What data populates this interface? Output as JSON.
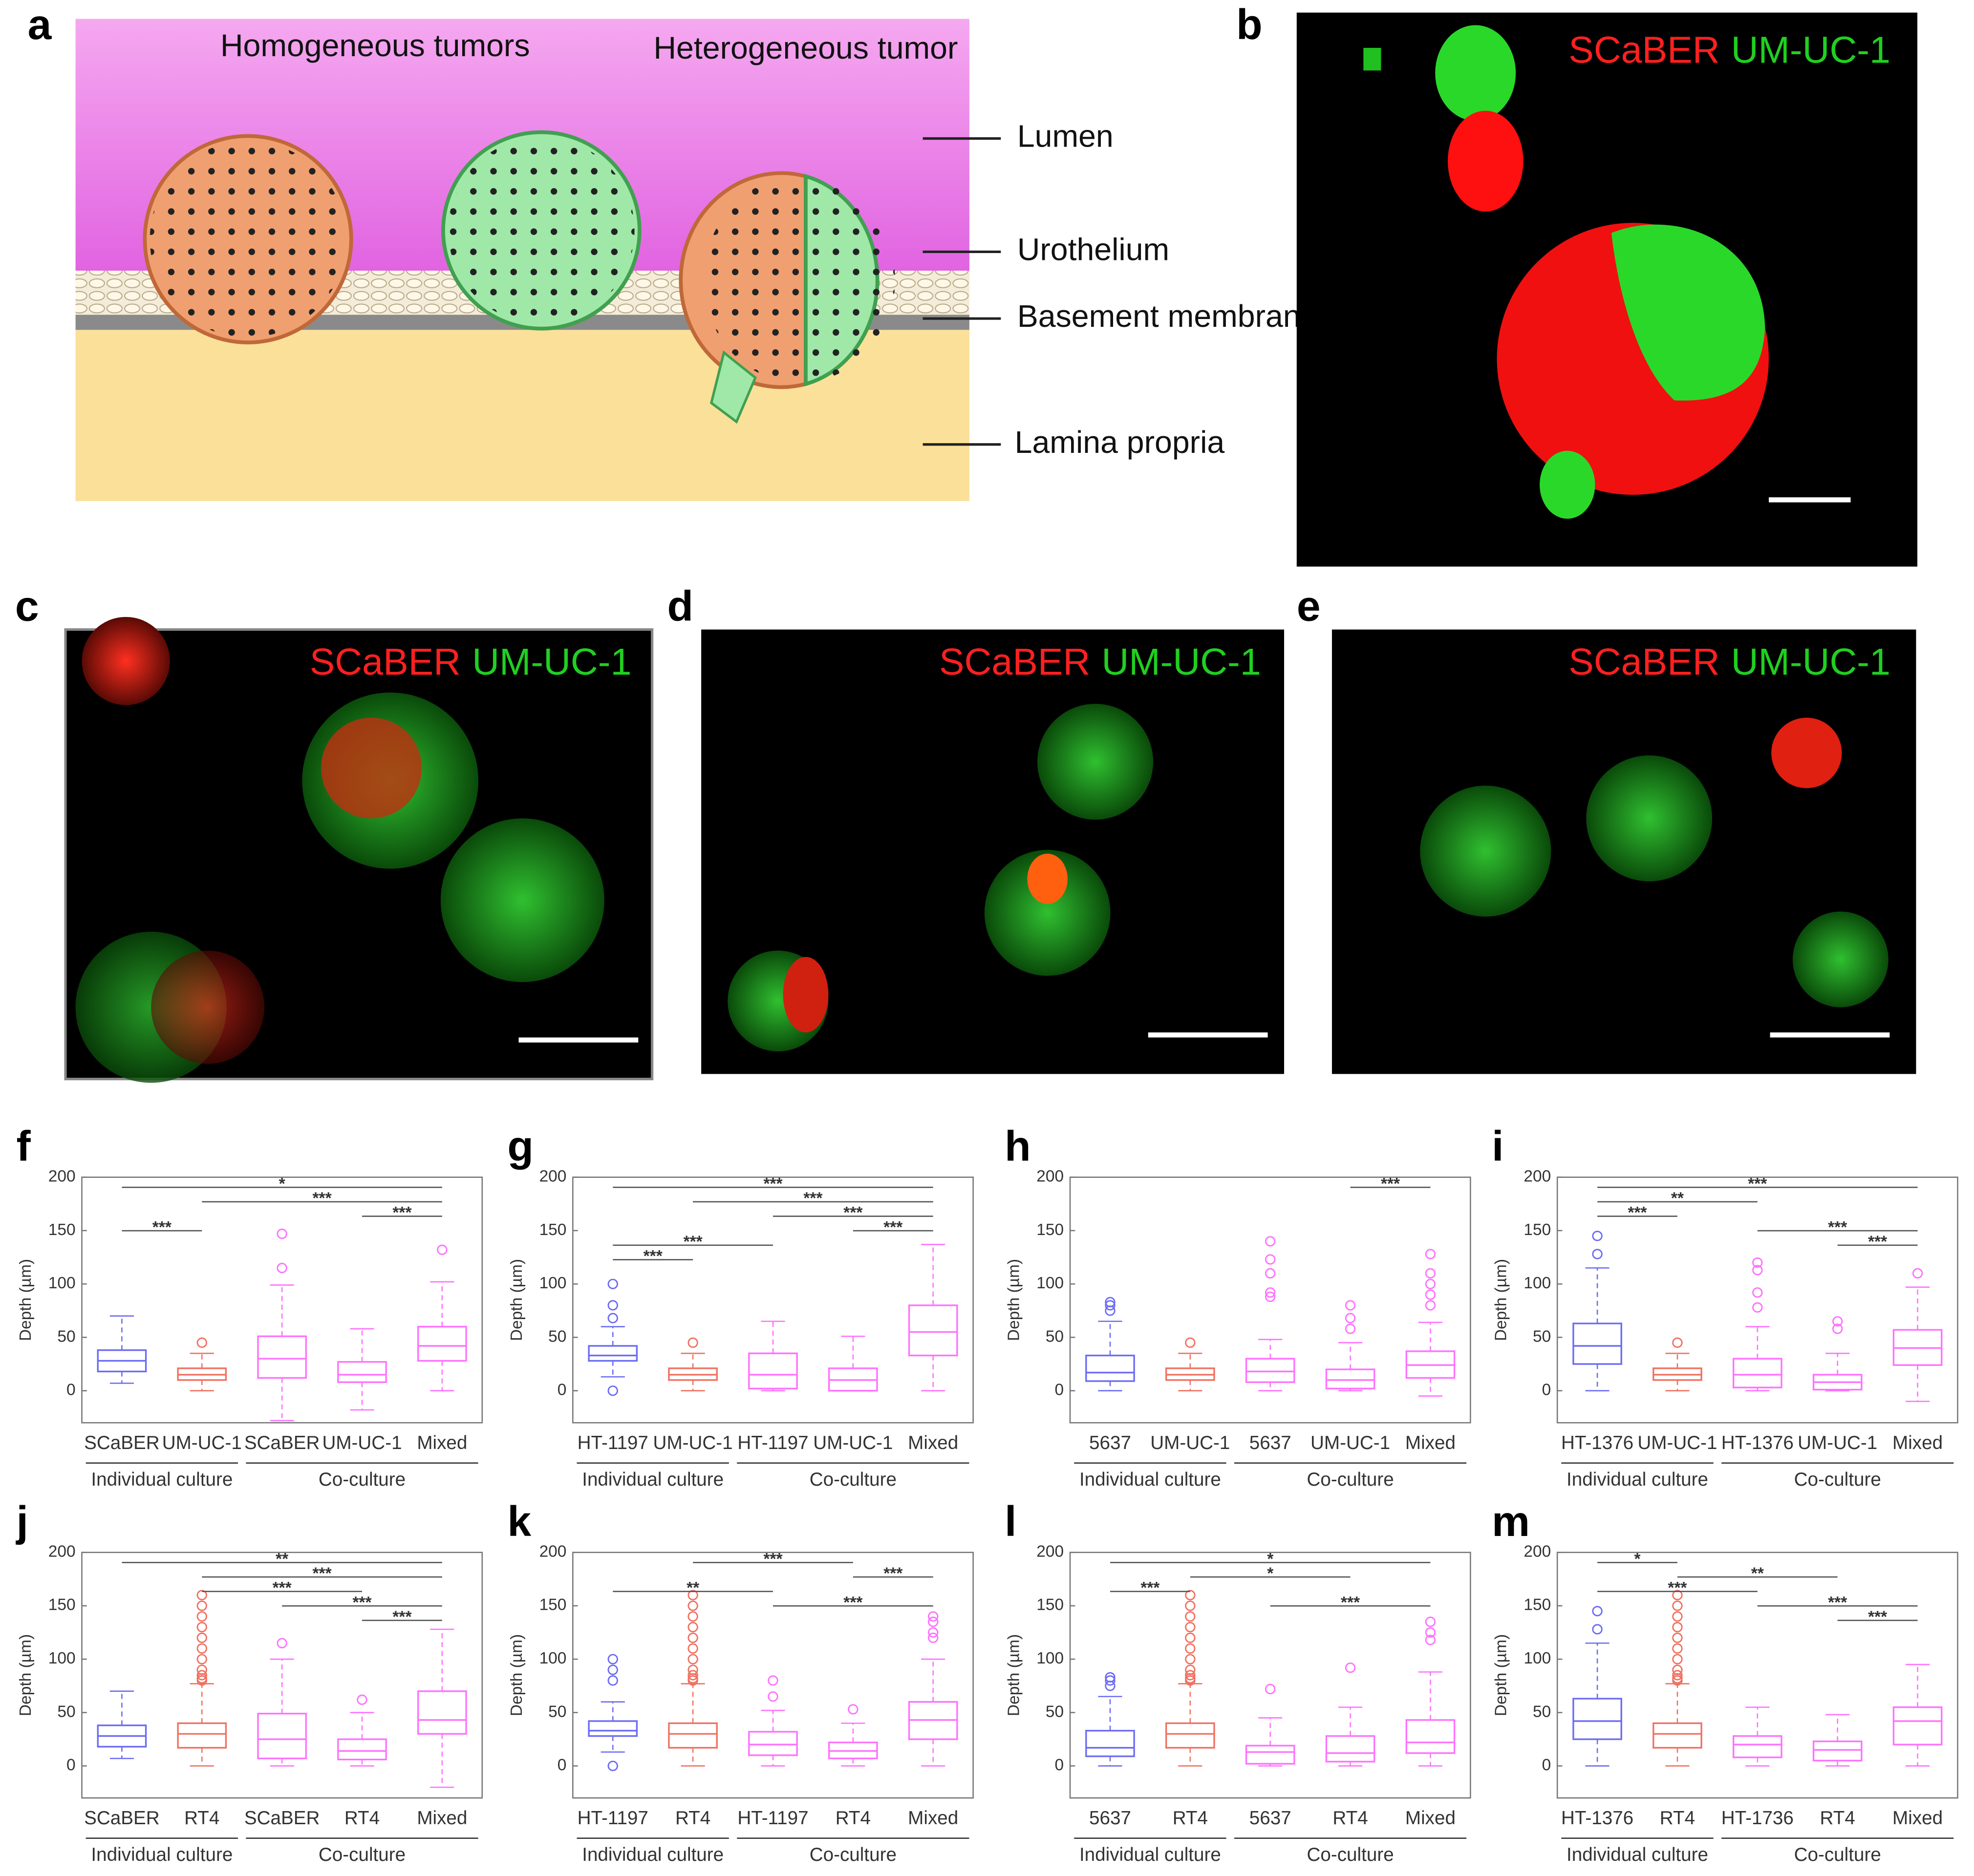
{
  "diagram": {
    "label": "a",
    "titles": [
      "Homogeneous tumors",
      "Heterogeneous tumor"
    ],
    "layers": [
      "Lumen",
      "Urothelium",
      "Basement membrane",
      "Lamina propria"
    ]
  },
  "images": [
    {
      "label": "b",
      "legend": [
        "SCaBER",
        "UM-UC-1"
      ]
    },
    {
      "label": "c",
      "legend": [
        "SCaBER",
        "UM-UC-1"
      ]
    },
    {
      "label": "d",
      "legend": [
        "SCaBER",
        "UM-UC-1"
      ]
    },
    {
      "label": "e",
      "legend": [
        "SCaBER",
        "UM-UC-1"
      ]
    }
  ],
  "chart_data": [
    {
      "type": "box",
      "label": "f",
      "ylabel": "Depth (µm)",
      "ylim": [
        -30,
        200
      ],
      "yticks": [
        0,
        50,
        100,
        150,
        200
      ],
      "categories": [
        "SCaBER",
        "UM-UC-1",
        "SCaBER",
        "UM-UC-1",
        "Mixed"
      ],
      "colors": [
        "#6b6bf5",
        "#f07060",
        "#ff70ff",
        "#ff70ff",
        "#ff70ff"
      ],
      "groups": [
        {
          "label": "Individual culture",
          "from": 0,
          "to": 1
        },
        {
          "label": "Co-culture",
          "from": 2,
          "to": 4
        }
      ],
      "boxes": [
        {
          "whislo": 7,
          "q1": 18,
          "med": 28,
          "q3": 38,
          "whishi": 70,
          "fliers": []
        },
        {
          "whislo": 0,
          "q1": 10,
          "med": 15,
          "q3": 21,
          "whishi": 35,
          "fliers": [
            45
          ]
        },
        {
          "whislo": -28,
          "q1": 12,
          "med": 30,
          "q3": 51,
          "whishi": 99,
          "fliers": [
            115,
            147
          ]
        },
        {
          "whislo": -18,
          "q1": 8,
          "med": 15,
          "q3": 27,
          "whishi": 58,
          "fliers": []
        },
        {
          "whislo": 0,
          "q1": 28,
          "med": 42,
          "q3": 60,
          "whishi": 102,
          "fliers": [
            132
          ]
        }
      ],
      "brackets": [
        {
          "from": 0,
          "to": 4,
          "label": "*"
        },
        {
          "from": 1,
          "to": 4,
          "label": "***"
        },
        {
          "from": 3,
          "to": 4,
          "label": "***"
        },
        {
          "from": 0,
          "to": 1,
          "label": "***"
        }
      ]
    },
    {
      "type": "box",
      "label": "g",
      "ylabel": "Depth (µm)",
      "ylim": [
        -30,
        200
      ],
      "yticks": [
        0,
        50,
        100,
        150,
        200
      ],
      "categories": [
        "HT-1197",
        "UM-UC-1",
        "HT-1197",
        "UM-UC-1",
        "Mixed"
      ],
      "colors": [
        "#6b6bf5",
        "#f07060",
        "#ff70ff",
        "#ff70ff",
        "#ff70ff"
      ],
      "groups": [
        {
          "label": "Individual culture",
          "from": 0,
          "to": 1
        },
        {
          "label": "Co-culture",
          "from": 2,
          "to": 4
        }
      ],
      "boxes": [
        {
          "whislo": 13,
          "q1": 28,
          "med": 33,
          "q3": 42,
          "whishi": 60,
          "fliers": [
            0,
            68,
            80,
            100
          ]
        },
        {
          "whislo": 0,
          "q1": 10,
          "med": 15,
          "q3": 21,
          "whishi": 35,
          "fliers": [
            45
          ]
        },
        {
          "whislo": 0,
          "q1": 2,
          "med": 15,
          "q3": 35,
          "whishi": 65,
          "fliers": []
        },
        {
          "whislo": 0,
          "q1": 0,
          "med": 10,
          "q3": 21,
          "whishi": 51,
          "fliers": []
        },
        {
          "whislo": 0,
          "q1": 33,
          "med": 55,
          "q3": 80,
          "whishi": 137,
          "fliers": []
        }
      ],
      "brackets": [
        {
          "from": 0,
          "to": 4,
          "label": "***"
        },
        {
          "from": 1,
          "to": 4,
          "label": "***"
        },
        {
          "from": 2,
          "to": 4,
          "label": "***"
        },
        {
          "from": 3,
          "to": 4,
          "label": "***"
        },
        {
          "from": 0,
          "to": 2,
          "label": "***"
        },
        {
          "from": 0,
          "to": 1,
          "label": "***"
        }
      ]
    },
    {
      "type": "box",
      "label": "h",
      "ylabel": "Depth (µm)",
      "ylim": [
        -30,
        200
      ],
      "yticks": [
        0,
        50,
        100,
        150,
        200
      ],
      "categories": [
        "5637",
        "UM-UC-1",
        "5637",
        "UM-UC-1",
        "Mixed"
      ],
      "colors": [
        "#6b6bf5",
        "#f07060",
        "#ff70ff",
        "#ff70ff",
        "#ff70ff"
      ],
      "groups": [
        {
          "label": "Individual culture",
          "from": 0,
          "to": 1
        },
        {
          "label": "Co-culture",
          "from": 2,
          "to": 4
        }
      ],
      "boxes": [
        {
          "whislo": 0,
          "q1": 9,
          "med": 17,
          "q3": 33,
          "whishi": 65,
          "fliers": [
            75,
            80,
            83
          ]
        },
        {
          "whislo": 0,
          "q1": 10,
          "med": 15,
          "q3": 21,
          "whishi": 35,
          "fliers": [
            45
          ]
        },
        {
          "whislo": 0,
          "q1": 8,
          "med": 18,
          "q3": 30,
          "whishi": 48,
          "fliers": [
            88,
            92,
            110,
            123,
            140
          ]
        },
        {
          "whislo": 0,
          "q1": 2,
          "med": 10,
          "q3": 20,
          "whishi": 45,
          "fliers": [
            58,
            68,
            80
          ]
        },
        {
          "whislo": -5,
          "q1": 12,
          "med": 24,
          "q3": 37,
          "whishi": 64,
          "fliers": [
            80,
            90,
            100,
            110,
            128
          ]
        }
      ],
      "brackets": [
        {
          "from": 3,
          "to": 4,
          "label": "***"
        }
      ]
    },
    {
      "type": "box",
      "label": "i",
      "ylabel": "Depth (µm)",
      "ylim": [
        -30,
        200
      ],
      "yticks": [
        0,
        50,
        100,
        150,
        200
      ],
      "categories": [
        "HT-1376",
        "UM-UC-1",
        "HT-1376",
        "UM-UC-1",
        "Mixed"
      ],
      "colors": [
        "#6b6bf5",
        "#f07060",
        "#ff70ff",
        "#ff70ff",
        "#ff70ff"
      ],
      "groups": [
        {
          "label": "Individual culture",
          "from": 0,
          "to": 1
        },
        {
          "label": "Co-culture",
          "from": 2,
          "to": 4
        }
      ],
      "boxes": [
        {
          "whislo": 0,
          "q1": 25,
          "med": 42,
          "q3": 63,
          "whishi": 115,
          "fliers": [
            128,
            145
          ]
        },
        {
          "whislo": 0,
          "q1": 10,
          "med": 15,
          "q3": 21,
          "whishi": 35,
          "fliers": [
            45
          ]
        },
        {
          "whislo": 0,
          "q1": 3,
          "med": 15,
          "q3": 30,
          "whishi": 60,
          "fliers": [
            78,
            92,
            113,
            120
          ]
        },
        {
          "whislo": 0,
          "q1": 1,
          "med": 8,
          "q3": 15,
          "whishi": 35,
          "fliers": [
            58,
            65
          ]
        },
        {
          "whislo": -10,
          "q1": 24,
          "med": 40,
          "q3": 57,
          "whishi": 97,
          "fliers": [
            110
          ]
        }
      ],
      "brackets": [
        {
          "from": 0,
          "to": 4,
          "label": "***"
        },
        {
          "from": 0,
          "to": 2,
          "label": "**"
        },
        {
          "from": 0,
          "to": 1,
          "label": "***"
        },
        {
          "from": 2,
          "to": 4,
          "label": "***"
        },
        {
          "from": 3,
          "to": 4,
          "label": "***"
        }
      ]
    },
    {
      "type": "box",
      "label": "j",
      "ylabel": "Depth (µm)",
      "ylim": [
        -30,
        200
      ],
      "yticks": [
        0,
        50,
        100,
        150,
        200
      ],
      "categories": [
        "SCaBER",
        "RT4",
        "SCaBER",
        "RT4",
        "Mixed"
      ],
      "colors": [
        "#6b6bf5",
        "#f07060",
        "#ff70ff",
        "#ff70ff",
        "#ff70ff"
      ],
      "groups": [
        {
          "label": "Individual culture",
          "from": 0,
          "to": 1
        },
        {
          "label": "Co-culture",
          "from": 2,
          "to": 4
        }
      ],
      "boxes": [
        {
          "whislo": 7,
          "q1": 18,
          "med": 28,
          "q3": 38,
          "whishi": 70,
          "fliers": []
        },
        {
          "whislo": 0,
          "q1": 17,
          "med": 30,
          "q3": 40,
          "whishi": 77,
          "fliers": [
            80,
            82,
            85,
            90,
            100,
            110,
            120,
            130,
            140,
            150,
            160
          ]
        },
        {
          "whislo": 0,
          "q1": 7,
          "med": 25,
          "q3": 49,
          "whishi": 100,
          "fliers": [
            115
          ]
        },
        {
          "whislo": 0,
          "q1": 6,
          "med": 14,
          "q3": 25,
          "whishi": 50,
          "fliers": [
            62
          ]
        },
        {
          "whislo": -20,
          "q1": 30,
          "med": 43,
          "q3": 70,
          "whishi": 128,
          "fliers": []
        }
      ],
      "brackets": [
        {
          "from": 0,
          "to": 4,
          "label": "**"
        },
        {
          "from": 1,
          "to": 4,
          "label": "***"
        },
        {
          "from": 1,
          "to": 3,
          "label": "***"
        },
        {
          "from": 2,
          "to": 4,
          "label": "***"
        },
        {
          "from": 3,
          "to": 4,
          "label": "***"
        }
      ]
    },
    {
      "type": "box",
      "label": "k",
      "ylabel": "Depth (µm)",
      "ylim": [
        -30,
        200
      ],
      "yticks": [
        0,
        50,
        100,
        150,
        200
      ],
      "categories": [
        "HT-1197",
        "RT4",
        "HT-1197",
        "RT4",
        "Mixed"
      ],
      "colors": [
        "#6b6bf5",
        "#f07060",
        "#ff70ff",
        "#ff70ff",
        "#ff70ff"
      ],
      "groups": [
        {
          "label": "Individual culture",
          "from": 0,
          "to": 1
        },
        {
          "label": "Co-culture",
          "from": 2,
          "to": 4
        }
      ],
      "boxes": [
        {
          "whislo": 13,
          "q1": 28,
          "med": 33,
          "q3": 42,
          "whishi": 60,
          "fliers": [
            0,
            80,
            90,
            100
          ]
        },
        {
          "whislo": 0,
          "q1": 17,
          "med": 30,
          "q3": 40,
          "whishi": 77,
          "fliers": [
            80,
            82,
            85,
            90,
            100,
            110,
            120,
            130,
            140,
            150,
            160
          ]
        },
        {
          "whislo": 0,
          "q1": 10,
          "med": 20,
          "q3": 32,
          "whishi": 52,
          "fliers": [
            65,
            80
          ]
        },
        {
          "whislo": 0,
          "q1": 7,
          "med": 14,
          "q3": 22,
          "whishi": 40,
          "fliers": [
            53
          ]
        },
        {
          "whislo": 0,
          "q1": 25,
          "med": 43,
          "q3": 60,
          "whishi": 100,
          "fliers": [
            120,
            125,
            135,
            140
          ]
        }
      ],
      "brackets": [
        {
          "from": 1,
          "to": 3,
          "label": "***"
        },
        {
          "from": 3,
          "to": 4,
          "label": "***"
        },
        {
          "from": 0,
          "to": 2,
          "label": "**"
        },
        {
          "from": 2,
          "to": 4,
          "label": "***"
        }
      ]
    },
    {
      "type": "box",
      "label": "l",
      "ylabel": "Depth (µm)",
      "ylim": [
        -30,
        200
      ],
      "yticks": [
        0,
        50,
        100,
        150,
        200
      ],
      "categories": [
        "5637",
        "RT4",
        "5637",
        "RT4",
        "Mixed"
      ],
      "colors": [
        "#6b6bf5",
        "#f07060",
        "#ff70ff",
        "#ff70ff",
        "#ff70ff"
      ],
      "groups": [
        {
          "label": "Individual culture",
          "from": 0,
          "to": 1
        },
        {
          "label": "Co-culture",
          "from": 2,
          "to": 4
        }
      ],
      "boxes": [
        {
          "whislo": 0,
          "q1": 9,
          "med": 17,
          "q3": 33,
          "whishi": 65,
          "fliers": [
            75,
            80,
            83
          ]
        },
        {
          "whislo": 0,
          "q1": 17,
          "med": 30,
          "q3": 40,
          "whishi": 77,
          "fliers": [
            80,
            82,
            85,
            90,
            100,
            110,
            120,
            130,
            140,
            150,
            160
          ]
        },
        {
          "whislo": 0,
          "q1": 2,
          "med": 13,
          "q3": 19,
          "whishi": 45,
          "fliers": [
            72
          ]
        },
        {
          "whislo": 0,
          "q1": 4,
          "med": 12,
          "q3": 28,
          "whishi": 55,
          "fliers": [
            92
          ]
        },
        {
          "whislo": 0,
          "q1": 12,
          "med": 22,
          "q3": 43,
          "whishi": 88,
          "fliers": [
            118,
            125,
            135
          ]
        }
      ],
      "brackets": [
        {
          "from": 0,
          "to": 4,
          "label": "*"
        },
        {
          "from": 1,
          "to": 3,
          "label": "*"
        },
        {
          "from": 0,
          "to": 1,
          "label": "***"
        },
        {
          "from": 2,
          "to": 4,
          "label": "***"
        }
      ]
    },
    {
      "type": "box",
      "label": "m",
      "ylabel": "Depth (µm)",
      "ylim": [
        -30,
        200
      ],
      "yticks": [
        0,
        50,
        100,
        150,
        200
      ],
      "categories": [
        "HT-1376",
        "RT4",
        "HT-1736",
        "RT4",
        "Mixed"
      ],
      "colors": [
        "#6b6bf5",
        "#f07060",
        "#ff70ff",
        "#ff70ff",
        "#ff70ff"
      ],
      "groups": [
        {
          "label": "Individual culture",
          "from": 0,
          "to": 1
        },
        {
          "label": "Co-culture",
          "from": 2,
          "to": 4
        }
      ],
      "boxes": [
        {
          "whislo": 0,
          "q1": 25,
          "med": 42,
          "q3": 63,
          "whishi": 115,
          "fliers": [
            128,
            145
          ]
        },
        {
          "whislo": 0,
          "q1": 17,
          "med": 30,
          "q3": 40,
          "whishi": 77,
          "fliers": [
            80,
            82,
            85,
            90,
            100,
            110,
            120,
            130,
            140,
            150,
            160
          ]
        },
        {
          "whislo": 0,
          "q1": 8,
          "med": 20,
          "q3": 28,
          "whishi": 55,
          "fliers": []
        },
        {
          "whislo": 0,
          "q1": 5,
          "med": 15,
          "q3": 23,
          "whishi": 48,
          "fliers": []
        },
        {
          "whislo": 0,
          "q1": 20,
          "med": 42,
          "q3": 55,
          "whishi": 95,
          "fliers": []
        }
      ],
      "brackets": [
        {
          "from": 0,
          "to": 1,
          "label": "*"
        },
        {
          "from": 1,
          "to": 3,
          "label": "**"
        },
        {
          "from": 0,
          "to": 2,
          "label": "***"
        },
        {
          "from": 2,
          "to": 4,
          "label": "***"
        },
        {
          "from": 3,
          "to": 4,
          "label": "***"
        }
      ]
    }
  ]
}
